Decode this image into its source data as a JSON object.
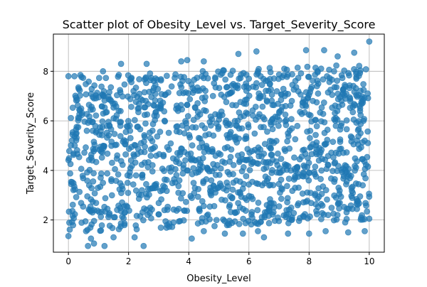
{
  "chart_data": {
    "type": "scatter",
    "title": "Scatter plot of Obesity_Level vs. Target_Severity_Score",
    "xlabel": "Obesity_Level",
    "ylabel": "Target_Severity_Score",
    "xlim": [
      -0.5,
      10.5
    ],
    "ylim": [
      0.7,
      9.5
    ],
    "xticks": [
      0,
      2,
      4,
      6,
      8,
      10
    ],
    "yticks": [
      2,
      4,
      6,
      8
    ],
    "xtick_labels": [
      "0",
      "2",
      "4",
      "6",
      "8",
      "10"
    ],
    "ytick_labels": [
      "2",
      "4",
      "6",
      "8"
    ],
    "grid": true,
    "point_color": "#1f77b4",
    "point_alpha": 0.7,
    "x_range": [
      0,
      10
    ],
    "y_band_low": [
      1.5,
      2.0
    ],
    "y_band_high": [
      7.8,
      8.3
    ],
    "points": [
      {
        "x": 10.0,
        "y": 9.2
      },
      {
        "x": 7.9,
        "y": 8.85
      },
      {
        "x": 8.5,
        "y": 8.85
      },
      {
        "x": 6.25,
        "y": 8.8
      },
      {
        "x": 8.95,
        "y": 8.6
      },
      {
        "x": 9.5,
        "y": 8.75
      },
      {
        "x": 5.65,
        "y": 8.7
      },
      {
        "x": 3.95,
        "y": 8.45
      },
      {
        "x": 3.75,
        "y": 8.4
      },
      {
        "x": 4.5,
        "y": 8.4
      },
      {
        "x": 1.75,
        "y": 8.3
      },
      {
        "x": 2.6,
        "y": 8.3
      },
      {
        "x": 1.15,
        "y": 8.0
      },
      {
        "x": 0.4,
        "y": 7.85
      },
      {
        "x": 0.0,
        "y": 7.8
      },
      {
        "x": 0.2,
        "y": 7.8
      },
      {
        "x": 0.0,
        "y": 1.35
      },
      {
        "x": 0.65,
        "y": 0.95
      },
      {
        "x": 0.85,
        "y": 1.05
      },
      {
        "x": 1.2,
        "y": 0.95
      },
      {
        "x": 2.5,
        "y": 0.95
      },
      {
        "x": 0.75,
        "y": 1.25
      },
      {
        "x": 1.5,
        "y": 1.3
      },
      {
        "x": 2.2,
        "y": 1.3
      },
      {
        "x": 4.1,
        "y": 1.25
      },
      {
        "x": 4.5,
        "y": 1.55
      },
      {
        "x": 5.2,
        "y": 1.45
      },
      {
        "x": 5.8,
        "y": 1.45
      },
      {
        "x": 6.3,
        "y": 1.55
      },
      {
        "x": 6.5,
        "y": 1.3
      },
      {
        "x": 7.3,
        "y": 1.45
      },
      {
        "x": 8.0,
        "y": 1.45
      },
      {
        "x": 8.55,
        "y": 1.55
      },
      {
        "x": 9.3,
        "y": 1.5
      },
      {
        "x": 9.85,
        "y": 1.55
      },
      {
        "x": 9.2,
        "y": 1.9
      },
      {
        "x": 10.0,
        "y": 2.05
      }
    ]
  }
}
